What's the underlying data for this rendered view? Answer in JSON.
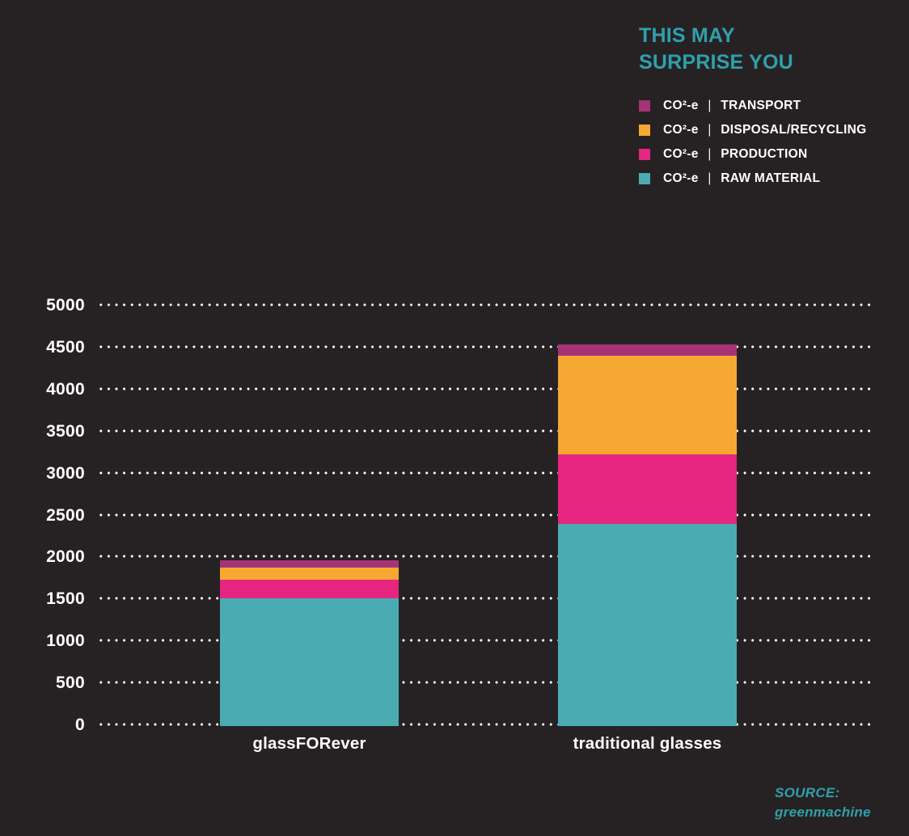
{
  "title": {
    "line1": "THIS MAY",
    "line2": "SURPRISE YOU"
  },
  "legend": {
    "prefix": "CO²-e",
    "separator": "|",
    "items": [
      {
        "name": "transport",
        "label": "TRANSPORT",
        "color": "#a63377"
      },
      {
        "name": "disposal-recycling",
        "label": "DISPOSAL/RECYCLING",
        "color": "#f5a832"
      },
      {
        "name": "production",
        "label": "PRODUCTION",
        "color": "#e62580"
      },
      {
        "name": "raw-material",
        "label": "RAW MATERIAL",
        "color": "#4aacb2"
      }
    ]
  },
  "chart_data": {
    "type": "bar",
    "stacked": true,
    "title": "THIS MAY SURPRISE YOU",
    "categories": [
      "glassFORever",
      "traditional glasses"
    ],
    "series": [
      {
        "name": "CO²-e | RAW MATERIAL",
        "color": "#4aacb2",
        "values": [
          1520,
          2410
        ]
      },
      {
        "name": "CO²-e | PRODUCTION",
        "color": "#e62580",
        "values": [
          220,
          830
        ]
      },
      {
        "name": "CO²-e | DISPOSAL/RECYCLING",
        "color": "#f5a832",
        "values": [
          145,
          1170
        ]
      },
      {
        "name": "CO²-e | TRANSPORT",
        "color": "#a63377",
        "values": [
          90,
          140
        ]
      }
    ],
    "totals": [
      1975,
      4550
    ],
    "yticks": [
      0,
      500,
      1000,
      1500,
      2000,
      2500,
      3000,
      3500,
      4000,
      4500,
      5000
    ],
    "ylim": [
      0,
      5000
    ],
    "xlabel": "",
    "ylabel": "",
    "grid": "horizontal-dotted-white",
    "legend_position": "top-right"
  },
  "source": {
    "line1": "SOURCE:",
    "line2": "greenmachine"
  },
  "colors": {
    "background": "#262223",
    "accent_teal": "#2fa0ab",
    "text": "#ffffff"
  }
}
